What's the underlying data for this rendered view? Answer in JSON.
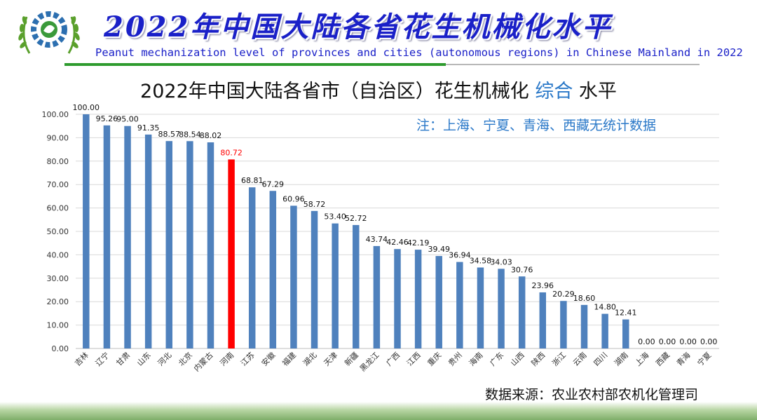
{
  "header": {
    "title": "2022年中国大陆各省花生机械化水平",
    "subtitle": "Peanut mechanization level of provinces and cities (autonomous regions) in Chinese Mainland in 2022"
  },
  "note": "注：上海、宁夏、青海、西藏无统计数据",
  "source": "数据来源：农业农村部农机化管理司",
  "colors": {
    "bar": "#4f81bd",
    "highlight": "#ff0000",
    "title_accent": "#2a78c8",
    "header_text": "#1a20c8"
  },
  "chart_data": {
    "type": "bar",
    "title_parts": [
      "2022年中国大陆各省市（自治区）花生机械化 ",
      "综合",
      " 水平"
    ],
    "categories": [
      "吉林",
      "辽宁",
      "甘肃",
      "山东",
      "河北",
      "北京",
      "内蒙古",
      "河南",
      "江苏",
      "安徽",
      "福建",
      "湖北",
      "天津",
      "新疆",
      "黑龙江",
      "广西",
      "江西",
      "重庆",
      "贵州",
      "海南",
      "广东",
      "山西",
      "陕西",
      "浙江",
      "云南",
      "四川",
      "湖南",
      "上海",
      "西藏",
      "青海",
      "宁夏"
    ],
    "values": [
      100.0,
      95.26,
      95.0,
      91.35,
      88.57,
      88.54,
      88.02,
      80.72,
      68.81,
      67.29,
      60.96,
      58.72,
      53.4,
      52.72,
      43.74,
      42.46,
      42.19,
      39.49,
      36.94,
      34.58,
      34.03,
      30.76,
      23.96,
      20.29,
      18.6,
      14.8,
      12.41,
      0.0,
      0.0,
      0.0,
      0.0
    ],
    "value_labels": [
      "100.00",
      "95.26",
      "95.00",
      "91.35",
      "88.57",
      "88.54",
      "88.02",
      "80.72",
      "68.81",
      "67.29",
      "60.96",
      "58.72",
      "53.40",
      "52.72",
      "43.74",
      "42.46",
      "42.19",
      "39.49",
      "36.94",
      "34.58",
      "34.03",
      "30.76",
      "23.96",
      "20.29",
      "18.60",
      "14.80",
      "12.41",
      "0.00",
      "0.00",
      "0.00",
      "0.00"
    ],
    "highlight_index": 7,
    "ylim": [
      0,
      100
    ],
    "yticks": [
      "0.00",
      "10.00",
      "20.00",
      "30.00",
      "40.00",
      "50.00",
      "60.00",
      "70.00",
      "80.00",
      "90.00",
      "100.00"
    ],
    "grid": true,
    "legend": "none"
  }
}
